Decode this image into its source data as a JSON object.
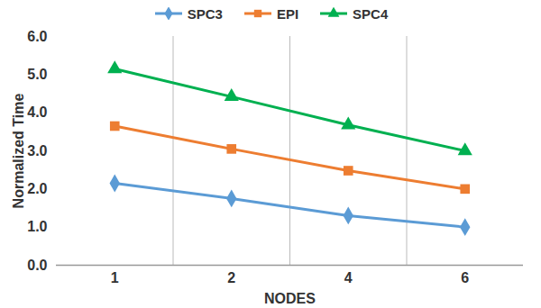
{
  "chart_data": {
    "type": "line",
    "x_label": "NODES",
    "y_label": "Normalized Time",
    "categories": [
      "1",
      "2",
      "4",
      "6"
    ],
    "series": [
      {
        "name": "SPC3",
        "color": "#5b9bd5",
        "marker": "diamond",
        "values": [
          2.15,
          1.75,
          1.3,
          1.0
        ]
      },
      {
        "name": "EPI",
        "color": "#ed7d31",
        "marker": "square",
        "values": [
          3.65,
          3.05,
          2.48,
          2.0
        ]
      },
      {
        "name": "SPC4",
        "color": "#00b050",
        "marker": "triangle",
        "values": [
          5.15,
          4.42,
          3.68,
          3.0
        ]
      }
    ],
    "ylim": [
      0,
      6
    ],
    "yticks": [
      0,
      1,
      2,
      3,
      4,
      5,
      6
    ],
    "grid": true,
    "legend": "top"
  }
}
